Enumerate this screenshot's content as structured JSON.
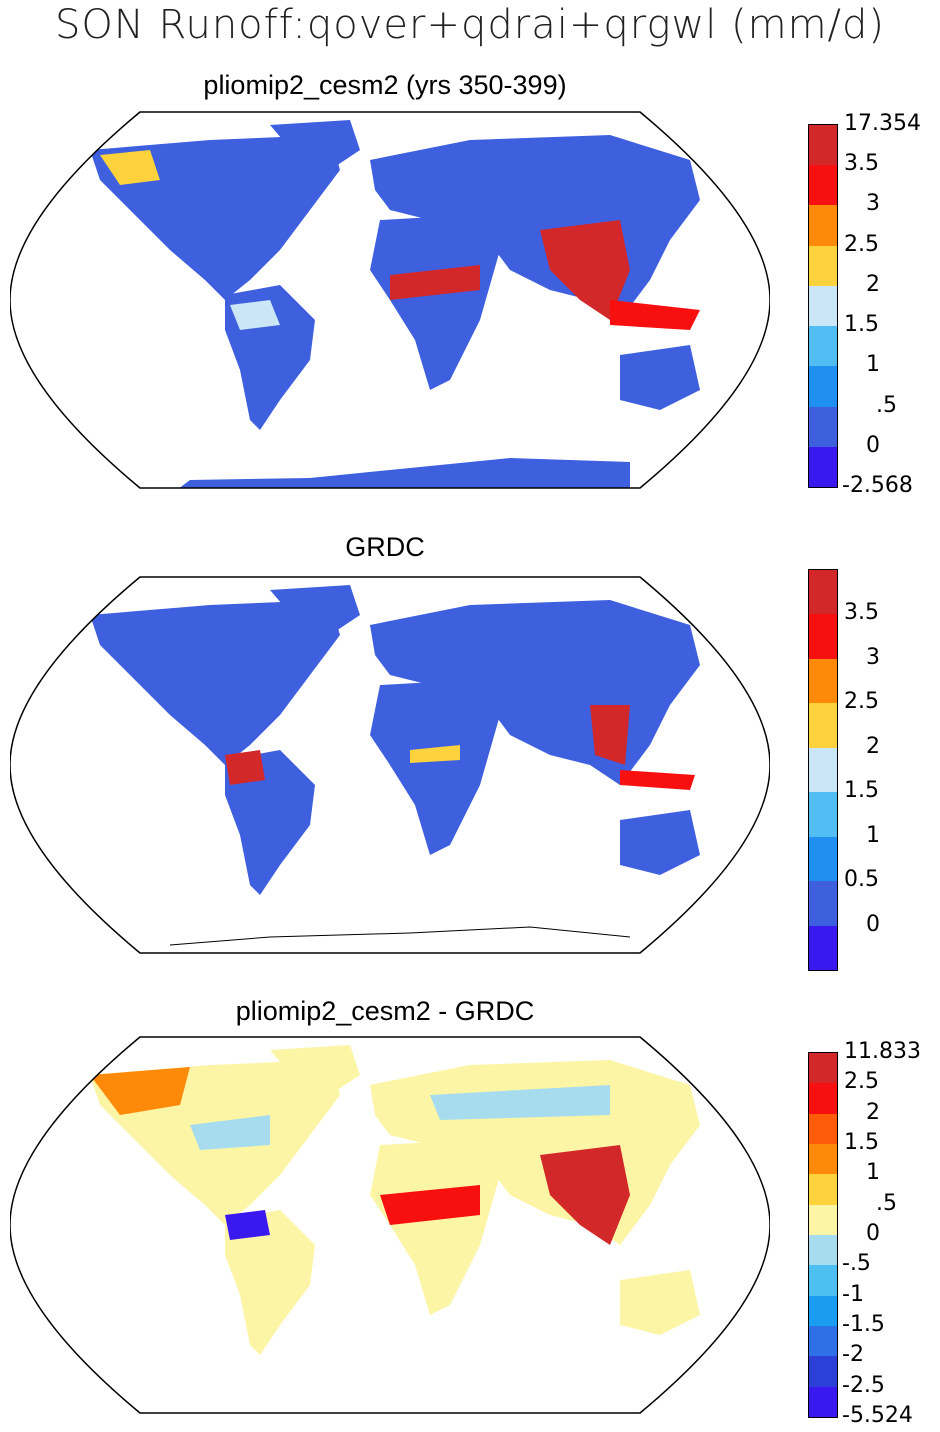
{
  "title": "SON Runoff:qover+qdrai+qrgwl (mm/d)",
  "panels": [
    {
      "id": "model",
      "title": "pliomip2_cesm2 (yrs 350-399)",
      "colorbar": {
        "colors": [
          "#3a19f0",
          "#3e5fde",
          "#1f8ff0",
          "#52bdf2",
          "#cbe6f7",
          "#fdd23c",
          "#ff8a0a",
          "#f80f0f",
          "#d3282a"
        ],
        "labels": [
          "17.354",
          "3.5",
          "3",
          "2.5",
          "2",
          "1.5",
          "1",
          ".5",
          "0",
          "-2.568"
        ]
      }
    },
    {
      "id": "obs",
      "title": "GRDC",
      "colorbar": {
        "colors": [
          "#3a19f0",
          "#3e5fde",
          "#1f8ff0",
          "#52bdf2",
          "#cbe6f7",
          "#fdd23c",
          "#ff8a0a",
          "#f80f0f",
          "#d3282a"
        ],
        "labels": [
          "3.5",
          "3",
          "2.5",
          "2",
          "1.5",
          "1",
          "0.5",
          "0"
        ]
      }
    },
    {
      "id": "diff",
      "title": "pliomip2_cesm2 - GRDC",
      "colorbar": {
        "colors": [
          "#3a19f0",
          "#2c3fd6",
          "#3070e6",
          "#1a9cf0",
          "#4dbff0",
          "#a6dcee",
          "#fdf5a6",
          "#fdd23c",
          "#ff8a0a",
          "#ff5c0a",
          "#f80f0f",
          "#d3282a"
        ],
        "labels": [
          "11.833",
          "2.5",
          "2",
          "1.5",
          "1",
          ".5",
          "0",
          "-.5",
          "-1",
          "-1.5",
          "-2",
          "-2.5",
          "-5.524"
        ]
      }
    }
  ]
}
